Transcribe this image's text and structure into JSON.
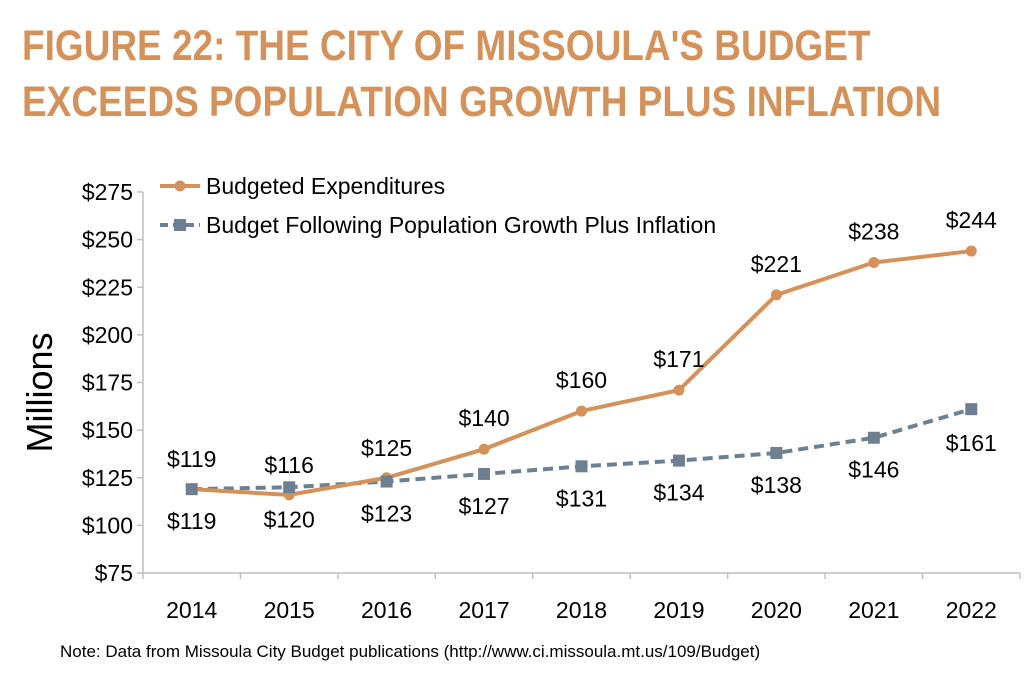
{
  "title": {
    "line1": "FIGURE 22: THE CITY OF MISSOULA'S BUDGET",
    "line2": "EXCEEDS POPULATION GROWTH PLUS INFLATION"
  },
  "note": "Note: Data from Missoula City Budget publications (http://www.ci.missoula.mt.us/109/Budget)",
  "colors": {
    "title": "#d4925a",
    "budgeted": "#d4925a",
    "following": "#6e7f91"
  },
  "chart_data": {
    "type": "line",
    "title": "FIGURE 22: THE CITY OF MISSOULA'S BUDGET EXCEEDS POPULATION GROWTH PLUS INFLATION",
    "xlabel": "",
    "ylabel": "Millions",
    "categories": [
      "2014",
      "2015",
      "2016",
      "2017",
      "2018",
      "2019",
      "2020",
      "2021",
      "2022"
    ],
    "ylim": [
      75,
      275
    ],
    "yticks": [
      75,
      100,
      125,
      150,
      175,
      200,
      225,
      250,
      275
    ],
    "ytick_labels": [
      "$75",
      "$100",
      "$125",
      "$150",
      "$175",
      "$200",
      "$225",
      "$250",
      "$275"
    ],
    "grid": false,
    "legend_position": "top-left",
    "series": [
      {
        "name": "Budgeted Expenditures",
        "values": [
          119,
          116,
          125,
          140,
          160,
          171,
          221,
          238,
          244
        ],
        "labels": [
          "$119",
          "$116",
          "$125",
          "$140",
          "$160",
          "$171",
          "$221",
          "$238",
          "$244"
        ],
        "style": "solid-circle"
      },
      {
        "name": "Budget Following Population Growth Plus Inflation",
        "values": [
          119,
          120,
          123,
          127,
          131,
          134,
          138,
          146,
          161
        ],
        "labels": [
          "$119",
          "$120",
          "$123",
          "$127",
          "$131",
          "$134",
          "$138",
          "$146",
          "$161"
        ],
        "style": "dashed-square"
      }
    ]
  }
}
